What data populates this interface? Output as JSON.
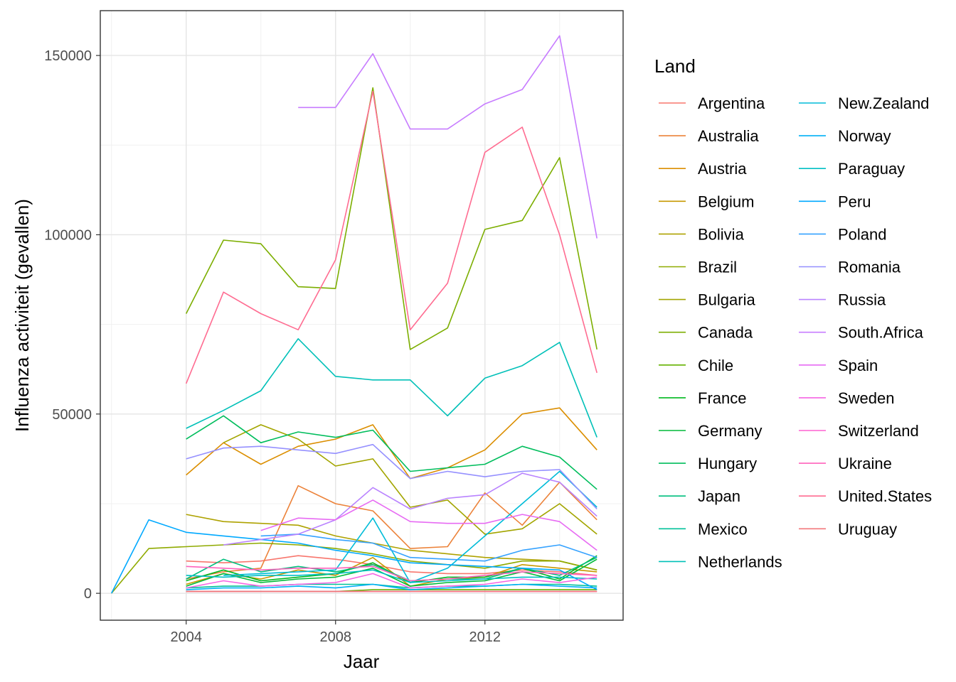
{
  "chart_data": {
    "type": "line",
    "xlabel": "Jaar",
    "ylabel": "Influenza activiteit (gevallen)",
    "xlim": [
      2001.7,
      2015.7
    ],
    "ylim": [
      -7500,
      162500
    ],
    "x_ticks": [
      2004,
      2008,
      2012
    ],
    "y_ticks": [
      0,
      50000,
      100000,
      150000
    ],
    "x_minor_ticks": [
      2002,
      2006,
      2010,
      2014
    ],
    "y_minor_ticks": [
      25000,
      75000,
      125000
    ],
    "grid": true,
    "legend": {
      "title": "Land",
      "placement": "right",
      "columns": 2
    },
    "series": [
      {
        "name": "Argentina",
        "color": "#F8766D",
        "x": [
          2004,
          2005,
          2006,
          2007,
          2008,
          2009,
          2010,
          2011,
          2012,
          2013,
          2014,
          2015
        ],
        "y": [
          9000,
          8500,
          9000,
          10500,
          9500,
          8000,
          6000,
          5500,
          5500,
          6500,
          6000,
          5000
        ]
      },
      {
        "name": "Australia",
        "color": "#EC8239",
        "x": [
          2004,
          2005,
          2006,
          2007,
          2008,
          2009,
          2010,
          2011,
          2012,
          2013,
          2014,
          2015
        ],
        "y": [
          4000,
          6000,
          7000,
          30000,
          25000,
          23000,
          12500,
          13000,
          28000,
          19000,
          31000,
          20500
        ]
      },
      {
        "name": "Austria",
        "color": "#DB8E00",
        "x": [
          2004,
          2005,
          2006,
          2007,
          2008,
          2009,
          2010,
          2011,
          2012,
          2013,
          2014,
          2015
        ],
        "y": [
          33000,
          42000,
          36000,
          41000,
          43000,
          47000,
          32000,
          35000,
          40000,
          50000,
          51700,
          40000
        ]
      },
      {
        "name": "Belgium",
        "color": "#C79800",
        "x": [
          2004,
          2005,
          2006,
          2007,
          2008,
          2009,
          2010,
          2011,
          2012,
          2013,
          2014,
          2015
        ],
        "y": [
          2500,
          5500,
          4000,
          6500,
          5000,
          10000,
          2000,
          4000,
          4500,
          8000,
          7000,
          6000
        ]
      },
      {
        "name": "Bolivia",
        "color": "#AEA200",
        "x": [
          2004,
          2005,
          2006,
          2007,
          2008,
          2009,
          2010,
          2011,
          2012,
          2013,
          2014,
          2015
        ],
        "y": [
          22000,
          20000,
          19500,
          19000,
          16000,
          14000,
          12000,
          11000,
          10000,
          9500,
          9000,
          6500
        ]
      },
      {
        "name": "Brazil",
        "color": "#8FAA00",
        "x": [
          2002,
          2003,
          2004,
          2005,
          2006,
          2007,
          2008,
          2009,
          2010,
          2011,
          2012,
          2013,
          2014,
          2015
        ],
        "y": [
          0,
          12500,
          13000,
          13500,
          14000,
          13500,
          12500,
          11000,
          9000,
          8000,
          7000,
          9000,
          9000,
          6500
        ]
      },
      {
        "name": "Bulgaria",
        "color": "#A3A500",
        "x": [
          2005,
          2006,
          2007,
          2008,
          2009,
          2010,
          2011,
          2012,
          2013,
          2014,
          2015
        ],
        "y": [
          42000,
          47000,
          43000,
          35500,
          37500,
          24000,
          26000,
          16500,
          18000,
          25000,
          16500
        ]
      },
      {
        "name": "Canada",
        "color": "#7CAE00",
        "x": [
          2004,
          2005,
          2006,
          2007,
          2008,
          2009,
          2010,
          2011,
          2012,
          2013,
          2014,
          2015
        ],
        "y": [
          78000,
          98500,
          97500,
          85500,
          85000,
          141000,
          68000,
          74000,
          101500,
          104000,
          121500,
          68000
        ]
      },
      {
        "name": "Chile",
        "color": "#64B200",
        "x": [
          2004,
          2005,
          2006,
          2007,
          2008,
          2009,
          2010,
          2011,
          2012,
          2013,
          2014,
          2015
        ],
        "y": [
          500,
          500,
          500,
          500,
          500,
          1000,
          1000,
          1000,
          1000,
          1000,
          1000,
          1000
        ]
      },
      {
        "name": "France",
        "color": "#00B81F",
        "x": [
          2004,
          2005,
          2006,
          2007,
          2008,
          2009,
          2010,
          2011,
          2012,
          2013,
          2014,
          2015
        ],
        "y": [
          3500,
          6500,
          3500,
          4500,
          5500,
          8500,
          3000,
          4500,
          4500,
          7000,
          4000,
          10500
        ]
      },
      {
        "name": "Germany",
        "color": "#00BA38",
        "x": [
          2004,
          2005,
          2006,
          2007,
          2008,
          2009,
          2010,
          2011,
          2012,
          2013,
          2014,
          2015
        ],
        "y": [
          2000,
          5500,
          3000,
          4000,
          4500,
          7000,
          2000,
          3000,
          3500,
          6000,
          3500,
          9500
        ]
      },
      {
        "name": "Hungary",
        "color": "#00BD5C",
        "x": [
          2004,
          2005,
          2006,
          2007,
          2008,
          2009,
          2010,
          2011,
          2012,
          2013,
          2014,
          2015
        ],
        "y": [
          43000,
          49500,
          42000,
          45000,
          43500,
          45500,
          34000,
          35000,
          36000,
          41000,
          38000,
          29000
        ]
      },
      {
        "name": "Japan",
        "color": "#00BF7D",
        "x": [
          2004,
          2005,
          2006,
          2007,
          2008,
          2009,
          2010,
          2011,
          2012,
          2013,
          2014,
          2015
        ],
        "y": [
          4000,
          9500,
          6000,
          7500,
          6000,
          8000,
          3500,
          4000,
          4000,
          7000,
          5000,
          10000
        ]
      },
      {
        "name": "Mexico",
        "color": "#00C19A",
        "x": [
          2004,
          2005,
          2006,
          2007,
          2008,
          2009,
          2010,
          2011,
          2012,
          2013,
          2014,
          2015
        ],
        "y": [
          1500,
          2000,
          2000,
          2500,
          2500,
          2500,
          1500,
          2000,
          2000,
          2500,
          2500,
          2000
        ]
      },
      {
        "name": "Netherlands",
        "color": "#00C0B8",
        "x": [
          2004,
          2005,
          2006,
          2007,
          2008,
          2009,
          2010,
          2011,
          2012,
          2013,
          2014,
          2015
        ],
        "y": [
          46000,
          51000,
          56500,
          71000,
          60500,
          59500,
          59500,
          49500,
          60000,
          63500,
          70000,
          43500
        ]
      },
      {
        "name": "New.Zealand",
        "color": "#00BCD8",
        "x": [
          2005,
          2006,
          2007,
          2008,
          2009,
          2010,
          2011,
          2012,
          2013,
          2014,
          2015
        ],
        "y": [
          5000,
          5500,
          6000,
          6500,
          21000,
          3000,
          7000,
          16000,
          25000,
          34000,
          24000
        ]
      },
      {
        "name": "Norway",
        "color": "#00B0F6",
        "x": [
          2004,
          2005,
          2006,
          2007,
          2008,
          2009,
          2010,
          2011,
          2012,
          2013,
          2014,
          2015
        ],
        "y": [
          1000,
          1500,
          1500,
          2000,
          1500,
          2500,
          1000,
          1500,
          2000,
          2500,
          2000,
          1500
        ]
      },
      {
        "name": "Paraguay",
        "color": "#00BFC4",
        "x": [
          2004,
          2005,
          2006,
          2007,
          2008,
          2009,
          2010,
          2011,
          2012,
          2013,
          2014,
          2015
        ],
        "y": [
          5000,
          4500,
          5000,
          5000,
          5500,
          6500,
          3000,
          3500,
          4000,
          4500,
          4500,
          4000
        ]
      },
      {
        "name": "Peru",
        "color": "#00A9FF",
        "x": [
          2002,
          2003,
          2004,
          2005,
          2006,
          2007,
          2008,
          2009,
          2010,
          2011,
          2012,
          2013,
          2014,
          2015
        ],
        "y": [
          0,
          20500,
          17000,
          16000,
          15000,
          14000,
          12000,
          10500,
          8500,
          8000,
          7500,
          7000,
          6500,
          1000
        ]
      },
      {
        "name": "Poland",
        "color": "#35A2FF",
        "x": [
          2006,
          2007,
          2008,
          2009,
          2010,
          2011,
          2012,
          2013,
          2014,
          2015
        ],
        "y": [
          16000,
          16500,
          15000,
          14000,
          10000,
          9500,
          9000,
          12000,
          13500,
          10000
        ]
      },
      {
        "name": "Romania",
        "color": "#9590FF",
        "x": [
          2004,
          2005,
          2006,
          2007,
          2008,
          2009,
          2010,
          2011,
          2012,
          2013,
          2014,
          2015
        ],
        "y": [
          37500,
          40500,
          41000,
          40000,
          39000,
          41500,
          32000,
          34000,
          32500,
          34000,
          34500,
          23500
        ]
      },
      {
        "name": "Russia",
        "color": "#B983FF",
        "x": [
          2005,
          2006,
          2007,
          2008,
          2009,
          2010,
          2011,
          2012,
          2013,
          2014,
          2015
        ],
        "y": [
          13500,
          15000,
          16500,
          20500,
          29500,
          23500,
          26500,
          27500,
          33500,
          31000,
          21500
        ]
      },
      {
        "name": "South.Africa",
        "color": "#C77CFF",
        "x": [
          2007,
          2008,
          2009,
          2010,
          2011,
          2012,
          2013,
          2014,
          2015
        ],
        "y": [
          135500,
          135500,
          150500,
          129500,
          129500,
          136500,
          140500,
          155500,
          99000
        ]
      },
      {
        "name": "Spain",
        "color": "#E76BF3",
        "x": [
          2006,
          2007,
          2008,
          2009,
          2010,
          2011,
          2012,
          2013,
          2014,
          2015
        ],
        "y": [
          17500,
          21000,
          20500,
          26000,
          20000,
          19500,
          19500,
          22000,
          20000,
          12000
        ]
      },
      {
        "name": "Sweden",
        "color": "#F564E3",
        "x": [
          2004,
          2005,
          2006,
          2007,
          2008,
          2009,
          2010,
          2011,
          2012,
          2013,
          2014,
          2015
        ],
        "y": [
          1500,
          3500,
          2000,
          2500,
          3000,
          5500,
          1500,
          2000,
          2500,
          4000,
          3000,
          4500
        ]
      },
      {
        "name": "Switzerland",
        "color": "#FD61D1",
        "x": [
          2004,
          2005,
          2006,
          2007,
          2008,
          2009,
          2010,
          2011,
          2012,
          2013,
          2014,
          2015
        ],
        "y": [
          500,
          500,
          500,
          500,
          500,
          500,
          500,
          500,
          500,
          500,
          500,
          500
        ]
      },
      {
        "name": "Ukraine",
        "color": "#FF62BC",
        "x": [
          2004,
          2005,
          2006,
          2007,
          2008,
          2009,
          2010,
          2011,
          2012,
          2013,
          2014,
          2015
        ],
        "y": [
          7500,
          7000,
          6500,
          7000,
          7000,
          7500,
          3500,
          4000,
          5000,
          6000,
          5500,
          5000
        ]
      },
      {
        "name": "United.States",
        "color": "#FF6C91",
        "x": [
          2004,
          2005,
          2006,
          2007,
          2008,
          2009,
          2010,
          2011,
          2012,
          2013,
          2014,
          2015
        ],
        "y": [
          58500,
          84000,
          78000,
          73500,
          93000,
          140000,
          73500,
          86500,
          123000,
          130000,
          100000,
          61500
        ]
      },
      {
        "name": "Uruguay",
        "color": "#F2777B",
        "x": [
          2004,
          2005,
          2006,
          2007,
          2008,
          2009,
          2010,
          2011,
          2012,
          2013,
          2014,
          2015
        ],
        "y": [
          500,
          500,
          500,
          500,
          500,
          500,
          500,
          500,
          500,
          500,
          500,
          500
        ]
      }
    ]
  }
}
